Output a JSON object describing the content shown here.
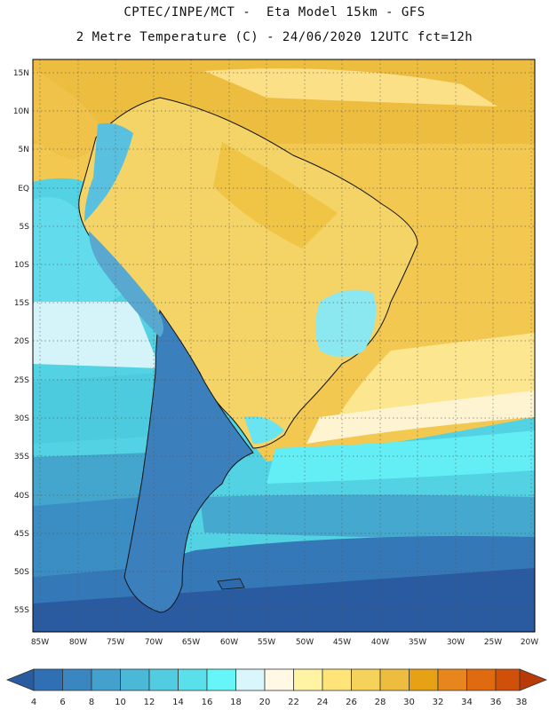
{
  "header": {
    "line1": "CPTEC/INPE/MCT -  Eta Model 15km - GFS",
    "line2": "2 Metre Temperature (C) - 24/06/2020 12UTC fct=12h"
  },
  "map": {
    "lat_labels": [
      "15N",
      "10N",
      "5N",
      "EQ",
      "5S",
      "10S",
      "15S",
      "20S",
      "25S",
      "30S",
      "35S",
      "40S",
      "45S",
      "50S",
      "55S"
    ],
    "lon_labels": [
      "85W",
      "80W",
      "75W",
      "70W",
      "65W",
      "60W",
      "55W",
      "50W",
      "45W",
      "40W",
      "35W",
      "30W",
      "25W",
      "20W"
    ],
    "lat_range": [
      -58,
      17
    ],
    "lon_range": [
      -86,
      -19.5
    ]
  },
  "colorbar": {
    "labels": [
      "4",
      "6",
      "8",
      "10",
      "12",
      "14",
      "16",
      "18",
      "20",
      "22",
      "24",
      "26",
      "28",
      "30",
      "32",
      "34",
      "36",
      "38"
    ],
    "colors": [
      "#2a5aa0",
      "#2f70b4",
      "#3a86c0",
      "#44a0cc",
      "#4cb8d8",
      "#52cce0",
      "#5ae0ea",
      "#66f6f8",
      "#d8f6fc",
      "#fff8e4",
      "#fff4a4",
      "#ffe47a",
      "#f6d25a",
      "#eebc3e",
      "#e6a214",
      "#e8861e",
      "#e06a10",
      "#d0500a",
      "#b83a08"
    ]
  }
}
